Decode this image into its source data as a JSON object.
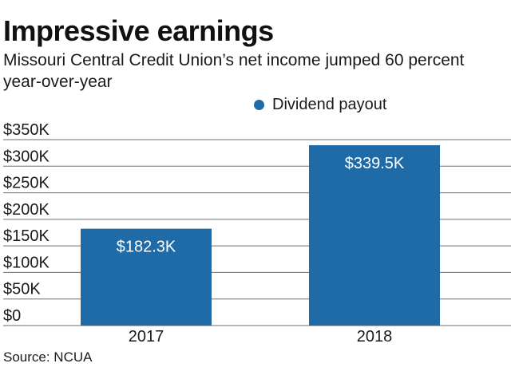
{
  "title": "Impressive earnings",
  "subtitle": "Missouri Central Credit Union’s net income jumped 60 percent year-over-year",
  "source": "Source: NCUA",
  "colors": {
    "bar": "#1f6ba7",
    "grid": "#6e6e6e",
    "label_inside": "#ffffff"
  },
  "chart_data": {
    "type": "bar",
    "categories": [
      "2017",
      "2018"
    ],
    "series": [
      {
        "name": "Dividend payout",
        "values": [
          182.3,
          339.5
        ],
        "data_labels": [
          "$182.3K",
          "$339.5K"
        ]
      }
    ],
    "ylim": [
      0,
      350
    ],
    "yticks": [
      0,
      50,
      100,
      150,
      200,
      250,
      300,
      350
    ],
    "ytick_labels": [
      "$0",
      "$50K",
      "$100K",
      "$150K",
      "$200K",
      "$250K",
      "$300K",
      "$350K"
    ],
    "xlabel": "",
    "ylabel": "",
    "grid": true,
    "legend_position": "top"
  }
}
